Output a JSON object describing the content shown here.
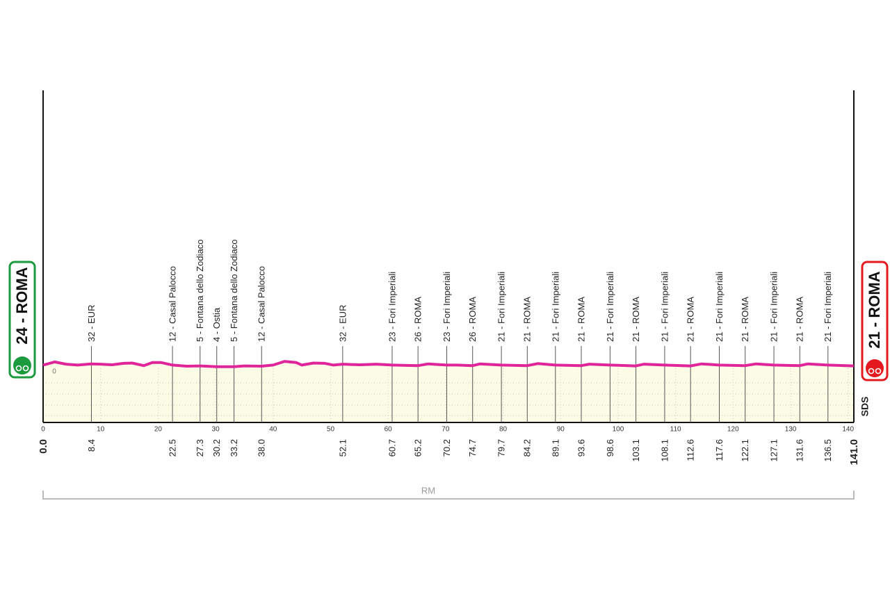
{
  "chart_data": {
    "type": "area",
    "start_label": "24 - ROMA",
    "finish_label": "21 - ROMA",
    "region": "RM",
    "brand": "SDS",
    "xlim": [
      0,
      141
    ],
    "xticks": [
      0,
      10,
      20,
      30,
      40,
      50,
      60,
      70,
      80,
      90,
      100,
      110,
      120,
      130,
      140
    ],
    "ylim": [
      -180,
      1000
    ],
    "yticks": [
      0
    ],
    "x": [
      0,
      2,
      4,
      6,
      8.4,
      10,
      12,
      14,
      15.5,
      17.5,
      19,
      20.5,
      22.5,
      25,
      27.3,
      30.2,
      33.2,
      35,
      38,
      40,
      42,
      44,
      45,
      47,
      49,
      50.5,
      52.1,
      55,
      58,
      60.7,
      65.2,
      67,
      70.2,
      72,
      74.7,
      76,
      79.7,
      84.2,
      86,
      89.1,
      93.6,
      95,
      98.6,
      103.1,
      104.5,
      108.1,
      112.6,
      114.5,
      117.6,
      122.1,
      124,
      127.1,
      131.6,
      133,
      136.5,
      141
    ],
    "series": [
      {
        "color": "#e0259b",
        "values": [
          24,
          35,
          27,
          24,
          28,
          27,
          25,
          30,
          31,
          22,
          33,
          33,
          24,
          20,
          21,
          18,
          18,
          21,
          20,
          24,
          37,
          33,
          24,
          31,
          30,
          24,
          27,
          25,
          27,
          24,
          22,
          28,
          24,
          24,
          22,
          28,
          24,
          22,
          29,
          24,
          22,
          27,
          24,
          21,
          27,
          24,
          21,
          28,
          24,
          22,
          28,
          24,
          22,
          28,
          24,
          21
        ]
      }
    ],
    "waypoints": {
      "x": [
        {
          "value": 0,
          "label": "0.0"
        },
        8.4,
        22.5,
        27.3,
        30.2,
        33.2,
        {
          "value": 38,
          "label": "38.0"
        },
        52.1,
        60.7,
        65.2,
        70.2,
        74.7,
        79.7,
        84.2,
        89.1,
        93.6,
        98.6,
        103.1,
        108.1,
        112.6,
        117.6,
        122.1,
        127.1,
        131.6,
        136.5,
        {
          "value": 141,
          "label": "141.0"
        }
      ],
      "labels": [
        null,
        "32 - EUR",
        "12 - Casal Palocco",
        "5 - Fontana dello Zodiaco",
        "4 - Ostia",
        "5 - Fontana dello Zodiaco",
        "12 - Casal Palocco",
        "32 - EUR",
        "23 - Fori Imperiali",
        "26 - ROMA",
        "23 - Fori Imperiali",
        "26 - ROMA",
        "21 - Fori Imperiali",
        "21 - ROMA",
        "21 - Fori Imperiali",
        "21 - ROMA",
        "21 - Fori Imperiali",
        "21 - ROMA",
        "21 - Fori Imperiali",
        "21 - ROMA",
        "21 - Fori Imperiali",
        "21 - ROMA",
        "21 - Fori Imperiali",
        "21 - ROMA",
        "21 - Fori Imperiali",
        null
      ]
    }
  }
}
